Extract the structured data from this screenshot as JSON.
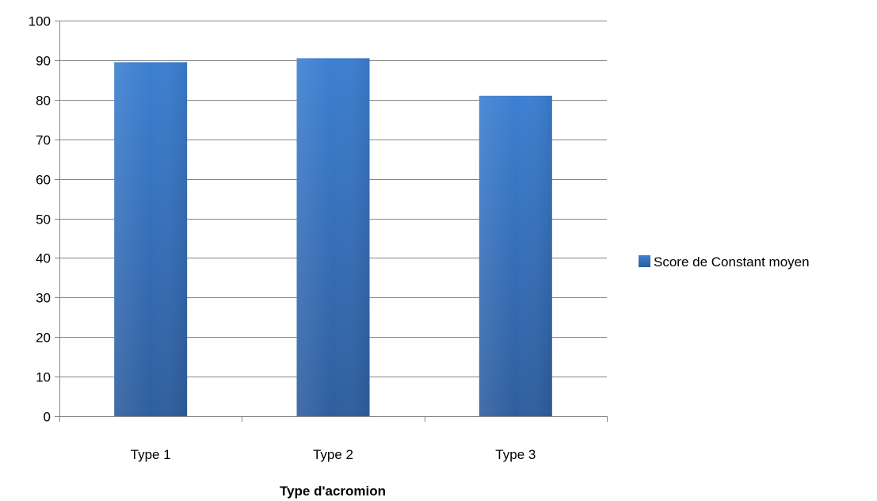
{
  "chart_data": {
    "type": "bar",
    "categories": [
      "Type 1",
      "Type 2",
      "Type 3"
    ],
    "series": [
      {
        "name": "Score de Constant moyen",
        "values": [
          89.5,
          90.5,
          81
        ],
        "color": "#3A72BD"
      }
    ],
    "title": "",
    "xlabel": "Type d'acromion",
    "ylabel": "",
    "ylim": [
      0,
      100
    ],
    "yticks": [
      0,
      10,
      20,
      30,
      40,
      50,
      60,
      70,
      80,
      90,
      100
    ],
    "grid": true,
    "legend_position": "right"
  }
}
